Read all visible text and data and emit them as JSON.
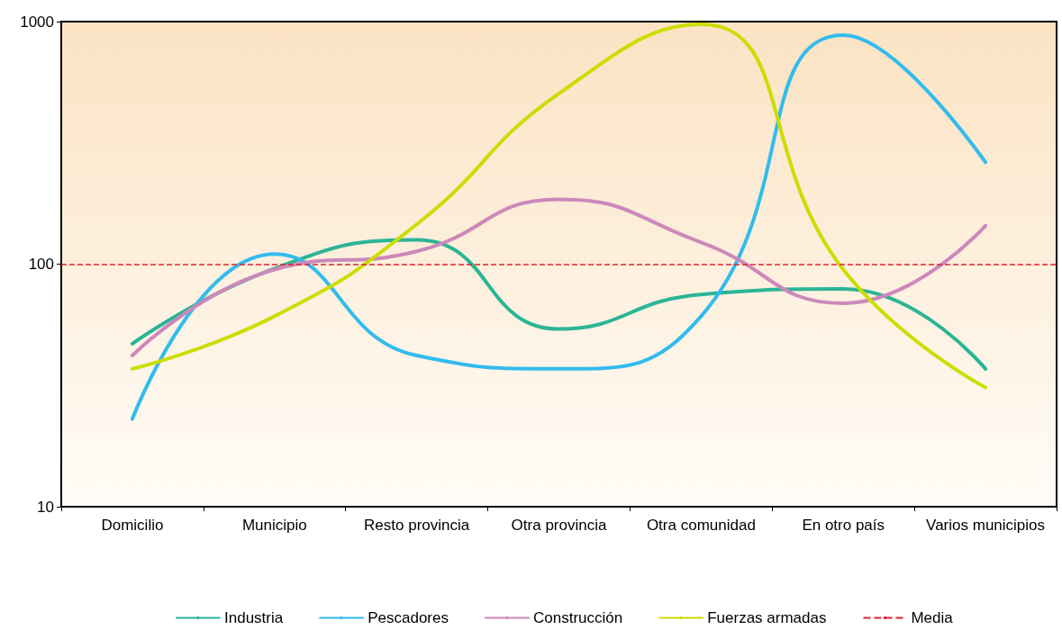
{
  "chart_data": {
    "type": "line",
    "categories": [
      "Domicilio",
      "Municipio",
      "Resto provincia",
      "Otra provincia",
      "Otra comunidad",
      "En otro país",
      "Varios municipios"
    ],
    "series": [
      {
        "name": "Industria",
        "color": "#2bb596",
        "values": [
          47,
          96,
          126,
          54,
          75,
          79,
          37
        ]
      },
      {
        "name": "Pescadores",
        "color": "#33bbee",
        "values": [
          23,
          110,
          42,
          37,
          61,
          880,
          263
        ]
      },
      {
        "name": "Construcción",
        "color": "#cc88bb",
        "values": [
          42,
          95,
          113,
          185,
          123,
          69,
          144
        ]
      },
      {
        "name": "Fuerzas armadas",
        "color": "#ccdd00",
        "values": [
          37,
          61,
          146,
          505,
          975,
          95,
          31
        ]
      }
    ],
    "ref_lines": [
      {
        "axis": "y",
        "value": 100,
        "label": "Media",
        "color": "#dd2233",
        "line_style": "dashed"
      }
    ],
    "log": "y",
    "ylim": [
      10,
      1000
    ],
    "yticks": [
      10,
      100,
      1000
    ],
    "grid": false,
    "legend": "bottom",
    "marker": "none",
    "line_style": "solid"
  }
}
